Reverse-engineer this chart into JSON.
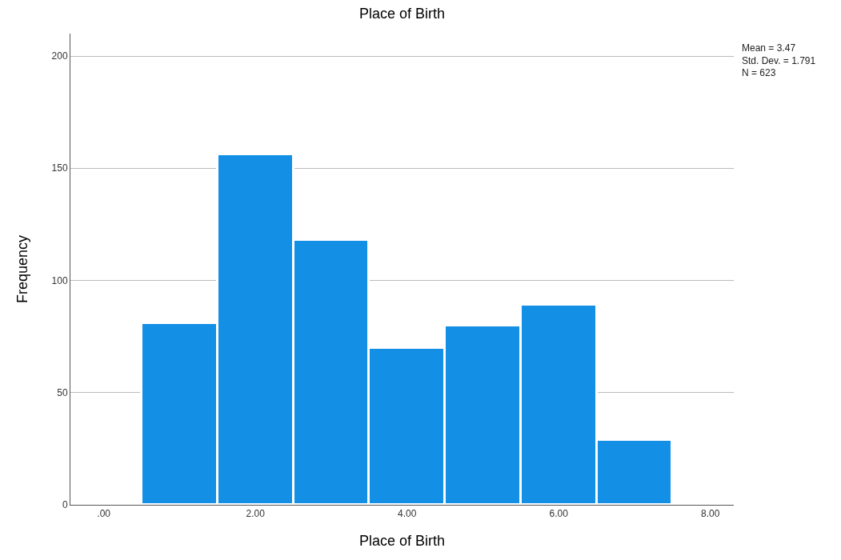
{
  "chart_data": {
    "type": "histogram",
    "title": "Place of Birth",
    "xlabel": "Place of Birth",
    "ylabel": "Frequency",
    "bins": [
      0.5,
      1.5,
      2.5,
      3.5,
      4.5,
      5.5,
      6.5,
      7.5
    ],
    "values": [
      81,
      156,
      118,
      70,
      80,
      89,
      29
    ],
    "color": "#1390e5",
    "xlim": [
      -0.44,
      8.31
    ],
    "xticks": [
      {
        "value": 0,
        "label": ".00"
      },
      {
        "value": 2,
        "label": "2.00"
      },
      {
        "value": 4,
        "label": "4.00"
      },
      {
        "value": 6,
        "label": "6.00"
      },
      {
        "value": 8,
        "label": "8.00"
      }
    ],
    "ylim": [
      0,
      210
    ],
    "yticks": [
      0,
      50,
      100,
      150,
      200
    ],
    "grid": "y",
    "legend": false,
    "annotations": [
      "Mean = 3.47\nStd. Dev. = 1.791\nN = 623"
    ]
  }
}
